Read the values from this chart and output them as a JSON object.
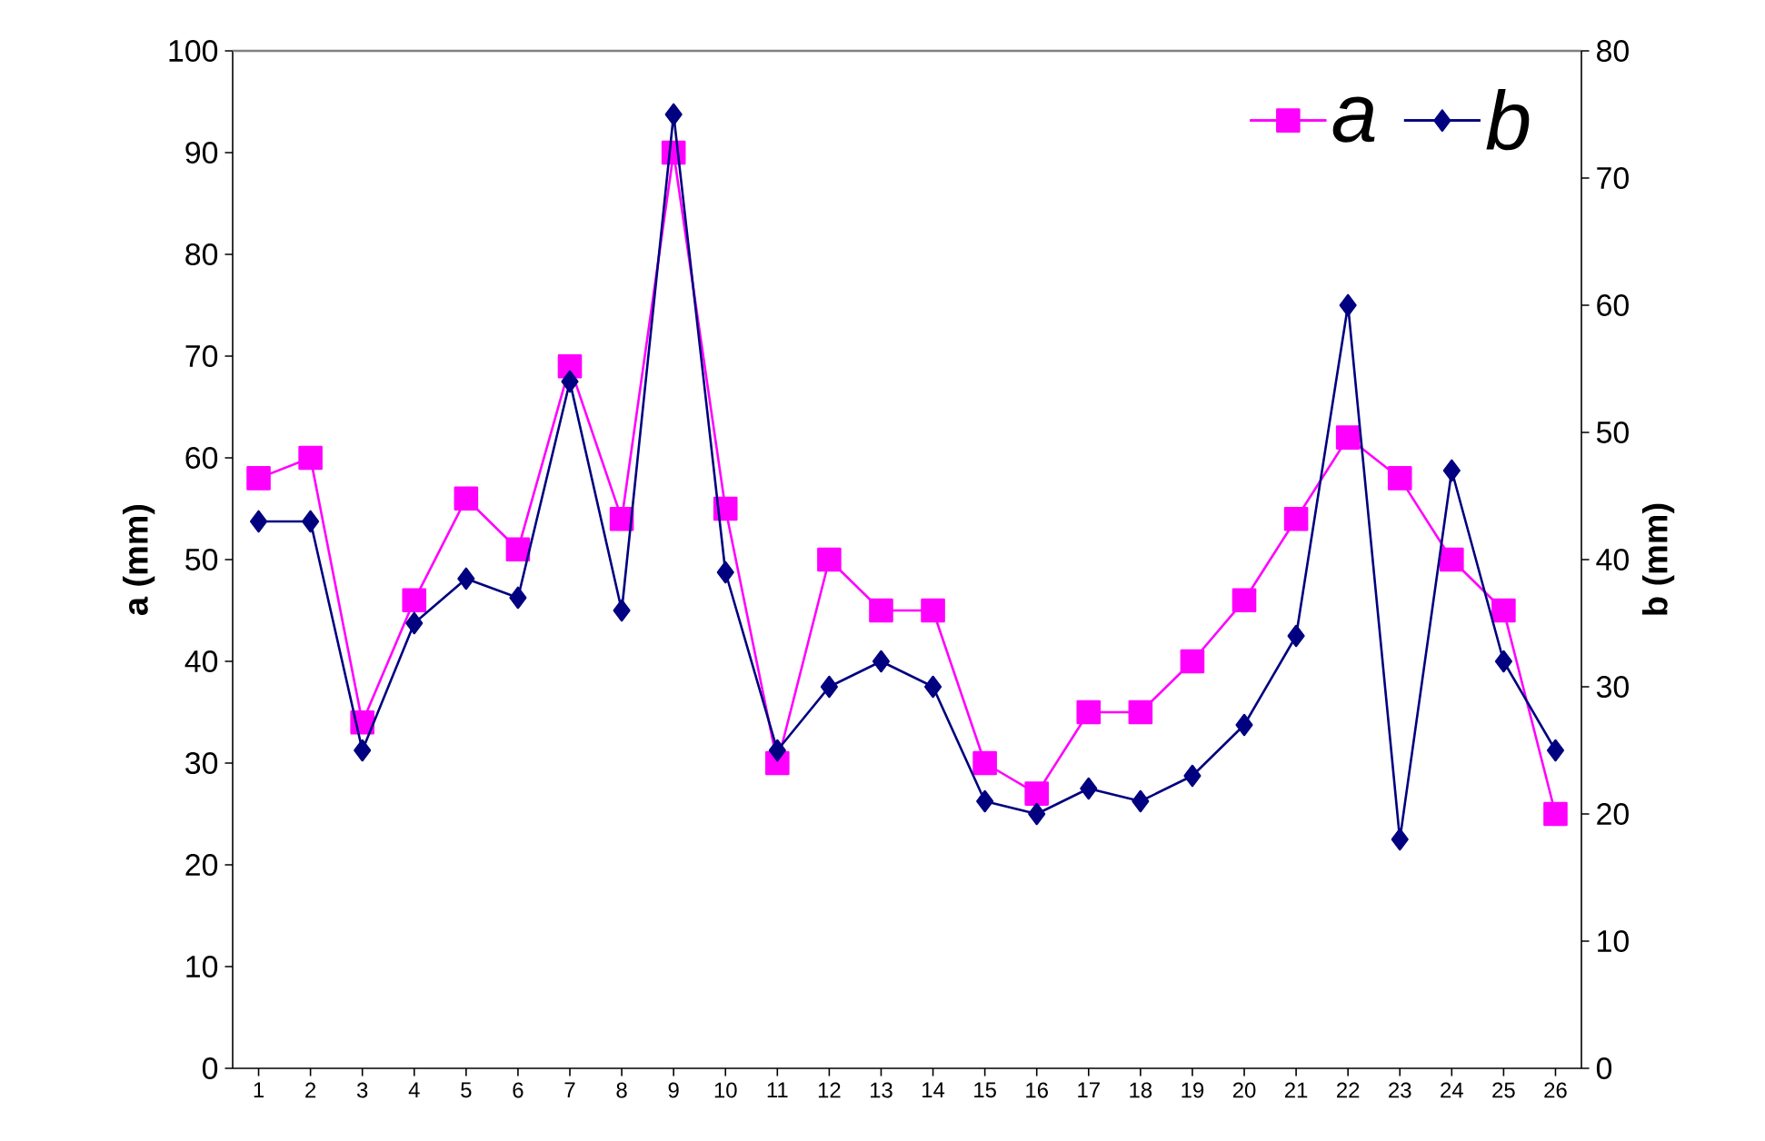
{
  "chart_data": {
    "type": "line",
    "categories": [
      "1",
      "2",
      "3",
      "4",
      "5",
      "6",
      "7",
      "8",
      "9",
      "10",
      "11",
      "12",
      "13",
      "14",
      "15",
      "16",
      "17",
      "18",
      "19",
      "20",
      "21",
      "22",
      "23",
      "24",
      "25",
      "26"
    ],
    "series": [
      {
        "name": "a",
        "color": "#ff00ff",
        "marker": "square",
        "values": [
          58,
          60,
          34,
          46,
          56,
          51,
          69,
          54,
          90,
          55,
          30,
          50,
          45,
          45,
          30,
          27,
          35,
          35,
          40,
          46,
          54,
          62,
          58,
          50,
          45,
          25
        ]
      },
      {
        "name": "b",
        "color": "#000080",
        "marker": "diamond",
        "axis": "y2",
        "values": [
          43,
          43,
          25,
          35,
          38.5,
          37,
          54,
          36,
          75,
          39,
          25,
          30,
          32,
          30,
          21,
          20,
          22,
          21,
          23,
          27,
          34,
          60,
          18,
          47,
          32,
          25
        ]
      }
    ],
    "ylabel": "a (mm)",
    "y2label": "b (mm)",
    "ylim": [
      0,
      100
    ],
    "yticks": [
      0,
      10,
      20,
      30,
      40,
      50,
      60,
      70,
      80,
      90,
      100
    ],
    "y2lim": [
      0,
      80
    ],
    "y2ticks": [
      0,
      10,
      20,
      30,
      40,
      50,
      60,
      70,
      80
    ],
    "legend": "top right",
    "grid": false,
    "line_style": "solid"
  }
}
